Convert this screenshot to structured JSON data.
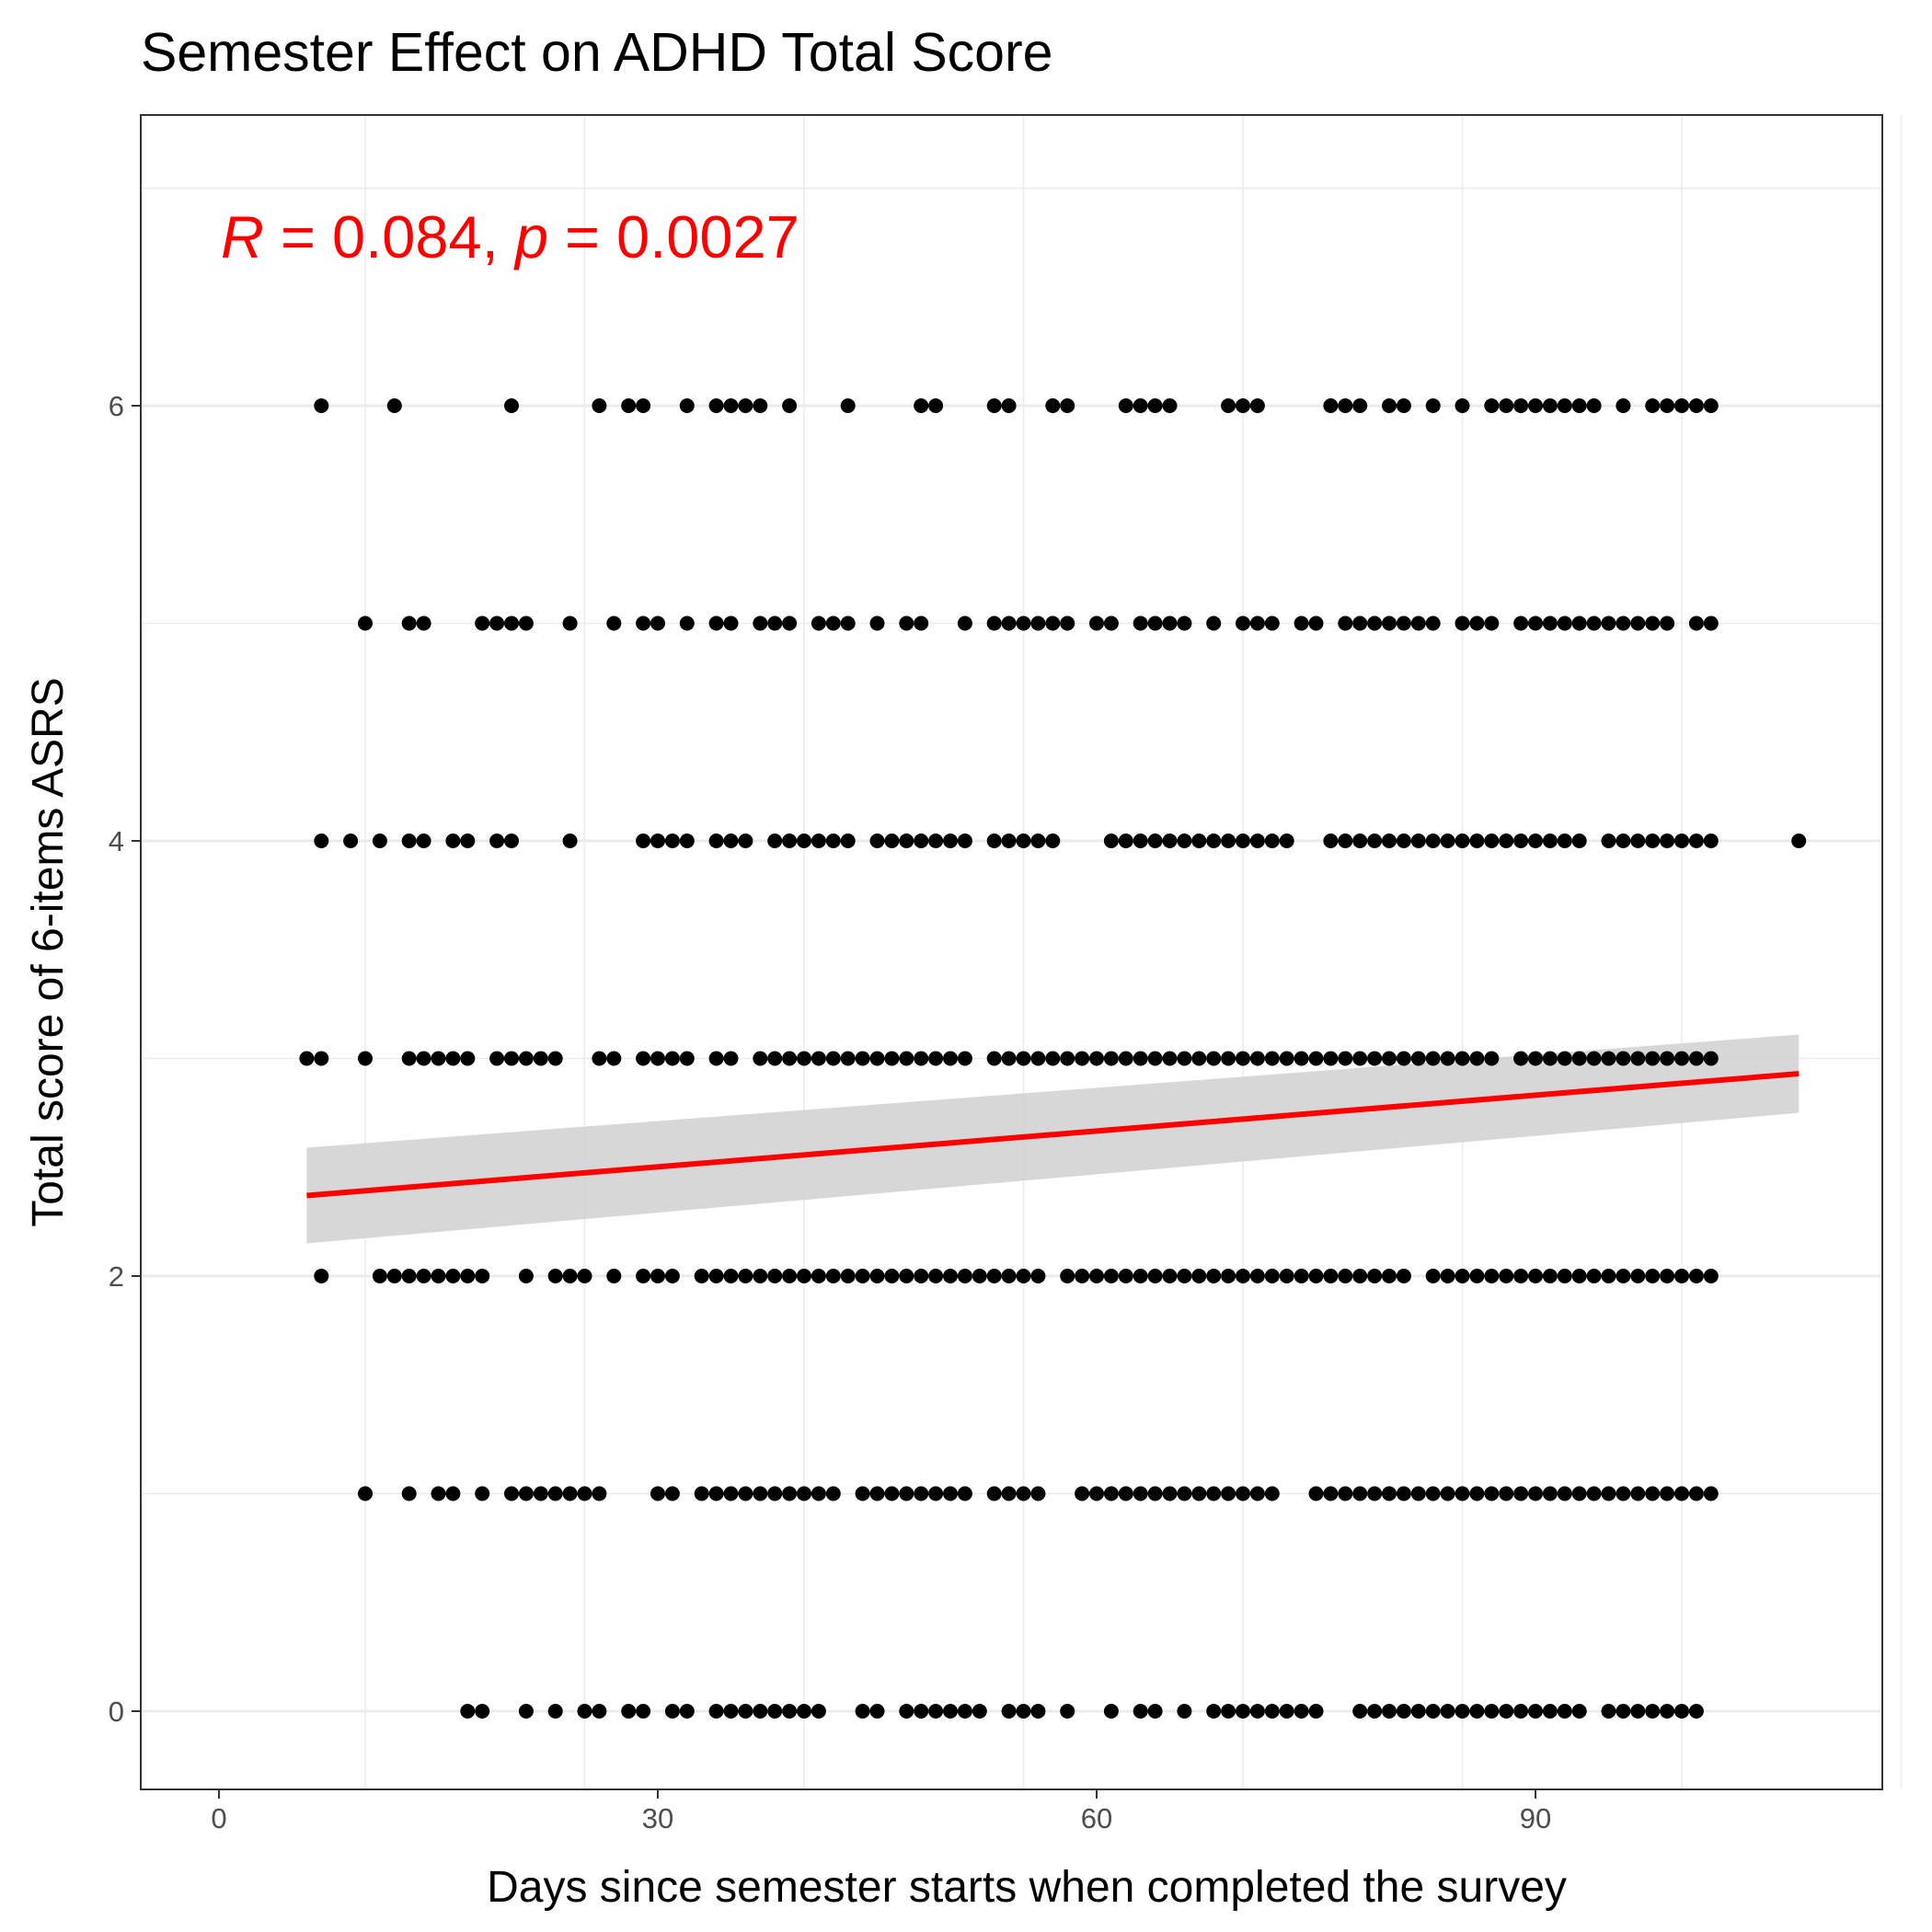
{
  "chart_data": {
    "type": "scatter",
    "title": "Semester Effect on ADHD Total Score",
    "xlabel": "Days since semester starts when completed the survey",
    "ylabel": "Total score of 6-items ASRS",
    "xlim": [
      -5,
      115
    ],
    "ylim": [
      -0.3,
      7.3
    ],
    "xticks": [
      0,
      30,
      60,
      90
    ],
    "yticks": [
      0,
      2,
      4,
      6
    ],
    "grid": true,
    "annotation": {
      "r_symbol": "R",
      "r_text": " = 0.084, ",
      "p_symbol": "p",
      "p_text": " = 0.0027",
      "x": 0,
      "y": 6.8
    },
    "fit_line": {
      "x": [
        6,
        108
      ],
      "y": [
        2.37,
        2.93
      ],
      "ci_lower": [
        2.15,
        2.75
      ],
      "ci_upper": [
        2.59,
        3.11
      ],
      "color": "#ff0000",
      "band_color": "#d3d3d3"
    },
    "point_color": "#000000",
    "series": [
      {
        "y": 6,
        "x": [
          7,
          12,
          20,
          26,
          28,
          29,
          32,
          34,
          35,
          36,
          37,
          39,
          43,
          48,
          49,
          53,
          54,
          57,
          58,
          62,
          63,
          64,
          65,
          69,
          70,
          71,
          76,
          77,
          78,
          80,
          81,
          83,
          85,
          87,
          88,
          89,
          90,
          91,
          92,
          93,
          94,
          96,
          98,
          99,
          100,
          101,
          102
        ]
      },
      {
        "y": 5,
        "x": [
          10,
          13,
          14,
          18,
          19,
          20,
          21,
          24,
          27,
          29,
          30,
          32,
          34,
          35,
          37,
          38,
          39,
          41,
          42,
          43,
          45,
          47,
          48,
          51,
          53,
          54,
          55,
          56,
          57,
          58,
          60,
          61,
          63,
          64,
          65,
          66,
          68,
          70,
          71,
          72,
          74,
          75,
          77,
          78,
          79,
          80,
          81,
          82,
          83,
          85,
          86,
          87,
          89,
          90,
          91,
          92,
          93,
          94,
          95,
          96,
          97,
          98,
          99,
          101,
          102
        ]
      },
      {
        "y": 4,
        "x": [
          7,
          9,
          11,
          13,
          14,
          16,
          17,
          19,
          20,
          24,
          29,
          30,
          31,
          32,
          34,
          35,
          36,
          38,
          39,
          40,
          41,
          42,
          43,
          45,
          46,
          47,
          48,
          49,
          50,
          51,
          53,
          54,
          55,
          56,
          57,
          61,
          62,
          63,
          64,
          65,
          66,
          67,
          68,
          69,
          70,
          71,
          72,
          73,
          76,
          77,
          78,
          79,
          80,
          81,
          82,
          83,
          84,
          85,
          86,
          87,
          88,
          89,
          90,
          91,
          92,
          93,
          95,
          96,
          97,
          98,
          99,
          100,
          101,
          102,
          108
        ]
      },
      {
        "y": 3,
        "x": [
          6,
          7,
          10,
          13,
          14,
          15,
          16,
          17,
          19,
          20,
          21,
          22,
          23,
          26,
          27,
          29,
          30,
          31,
          32,
          34,
          35,
          37,
          38,
          39,
          40,
          41,
          42,
          43,
          44,
          45,
          46,
          47,
          48,
          49,
          50,
          51,
          53,
          54,
          55,
          56,
          57,
          58,
          59,
          60,
          61,
          62,
          63,
          64,
          65,
          66,
          67,
          68,
          69,
          70,
          71,
          72,
          73,
          74,
          75,
          76,
          77,
          78,
          79,
          80,
          81,
          82,
          83,
          84,
          85,
          86,
          87,
          89,
          90,
          91,
          92,
          93,
          94,
          95,
          96,
          97,
          98,
          99,
          100,
          101,
          102
        ]
      },
      {
        "y": 2,
        "x": [
          7,
          11,
          12,
          13,
          14,
          15,
          16,
          17,
          18,
          21,
          23,
          24,
          25,
          27,
          29,
          30,
          31,
          33,
          34,
          35,
          36,
          37,
          38,
          39,
          40,
          41,
          42,
          43,
          44,
          45,
          46,
          47,
          48,
          49,
          50,
          51,
          52,
          53,
          54,
          55,
          56,
          58,
          59,
          60,
          61,
          62,
          63,
          64,
          65,
          66,
          67,
          68,
          69,
          70,
          71,
          72,
          73,
          74,
          75,
          76,
          77,
          78,
          79,
          80,
          81,
          83,
          84,
          85,
          86,
          87,
          88,
          89,
          90,
          91,
          92,
          93,
          94,
          95,
          96,
          97,
          98,
          99,
          100,
          101,
          102
        ]
      },
      {
        "y": 1,
        "x": [
          10,
          13,
          15,
          16,
          18,
          20,
          21,
          22,
          23,
          24,
          25,
          26,
          30,
          31,
          33,
          34,
          35,
          36,
          37,
          38,
          39,
          40,
          41,
          42,
          44,
          45,
          46,
          47,
          48,
          49,
          50,
          51,
          53,
          54,
          55,
          56,
          59,
          60,
          61,
          62,
          63,
          64,
          65,
          66,
          67,
          68,
          69,
          70,
          71,
          72,
          75,
          76,
          77,
          78,
          79,
          80,
          81,
          82,
          83,
          84,
          85,
          86,
          87,
          88,
          89,
          90,
          91,
          92,
          93,
          94,
          95,
          96,
          97,
          98,
          99,
          100,
          101,
          102
        ]
      },
      {
        "y": 0,
        "x": [
          17,
          18,
          21,
          23,
          25,
          26,
          28,
          29,
          31,
          32,
          34,
          35,
          36,
          37,
          38,
          39,
          40,
          41,
          44,
          45,
          47,
          48,
          49,
          50,
          51,
          52,
          54,
          55,
          56,
          58,
          61,
          63,
          64,
          66,
          68,
          69,
          70,
          71,
          72,
          73,
          74,
          75,
          78,
          79,
          80,
          81,
          82,
          83,
          84,
          85,
          86,
          87,
          88,
          89,
          90,
          91,
          92,
          93,
          95,
          96,
          97,
          98,
          99,
          100,
          101
        ]
      }
    ]
  }
}
